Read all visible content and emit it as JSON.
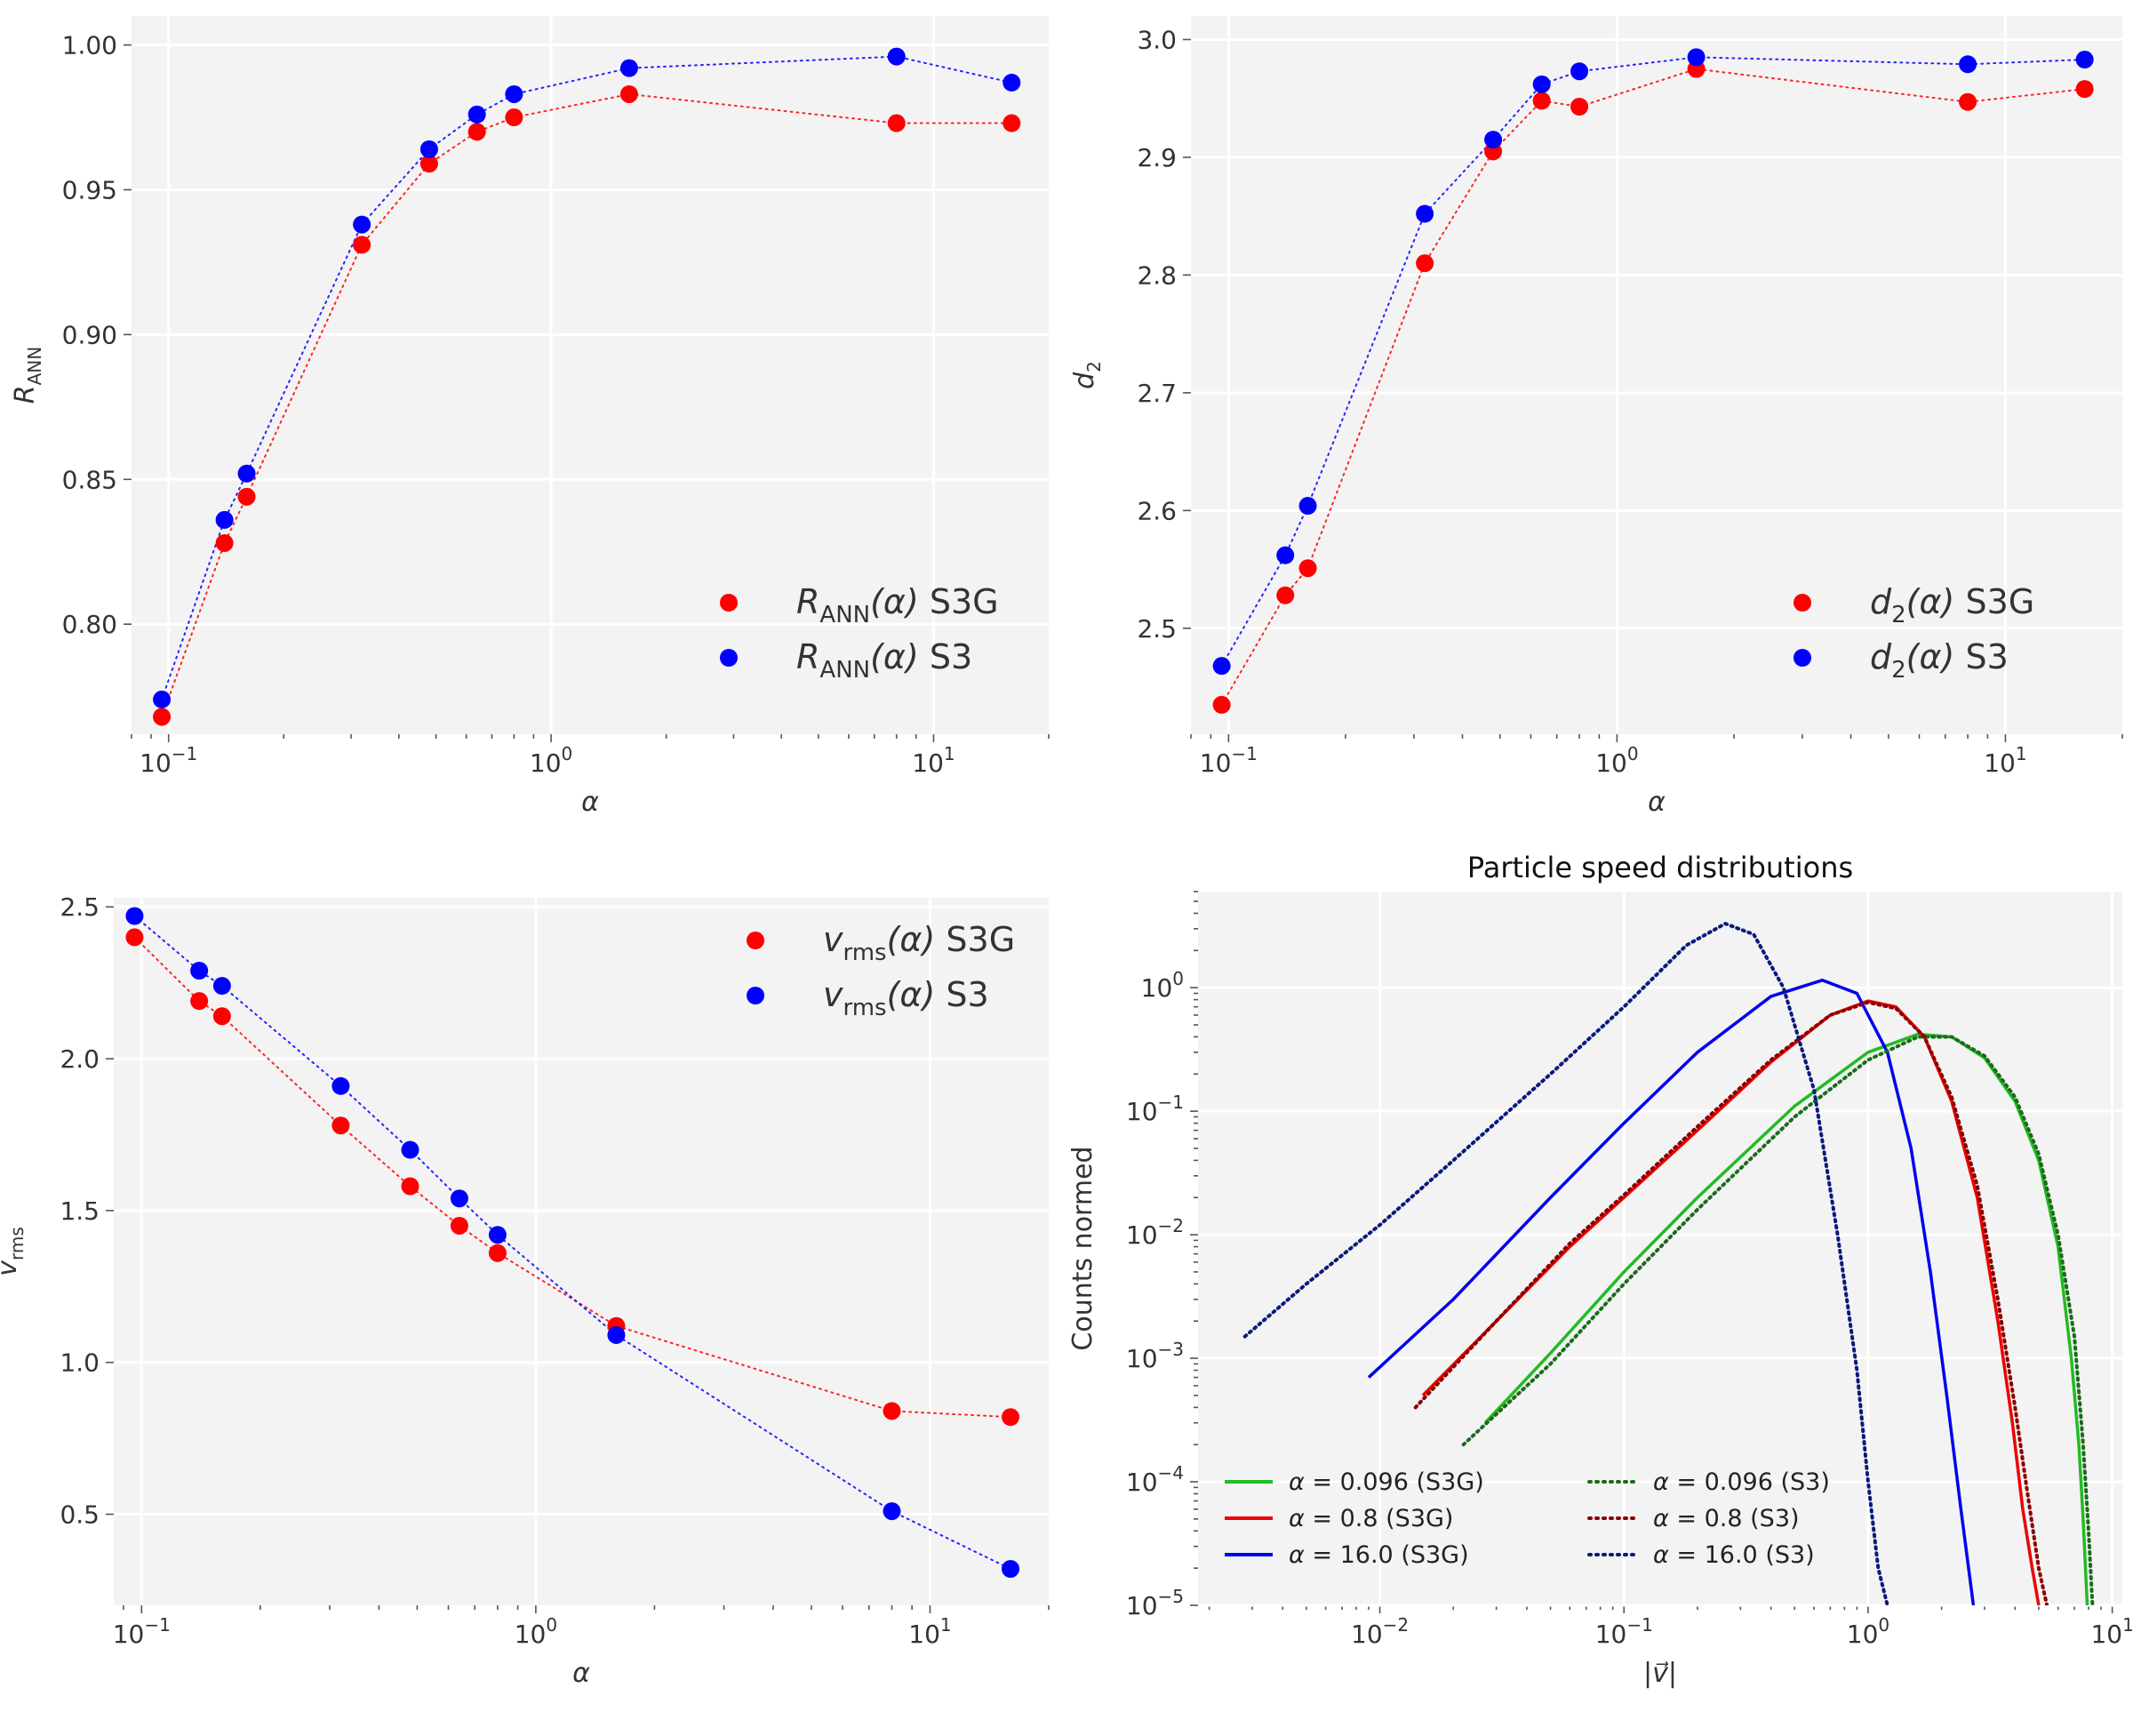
{
  "chart_data": [
    {
      "type": "scatter",
      "id": "rann",
      "xlabel": "α",
      "ylabel": "R_ANN",
      "xscale": "log",
      "xlim": [
        0.08,
        20
      ],
      "ylim": [
        0.762,
        1.01
      ],
      "xticks": [
        {
          "value": 0.1,
          "base": "10",
          "exp": "−1"
        },
        {
          "value": 1,
          "base": "10",
          "exp": "0"
        },
        {
          "value": 10,
          "base": "10",
          "exp": "1"
        }
      ],
      "yticks": [
        {
          "value": 0.8,
          "label": "0.80"
        },
        {
          "value": 0.85,
          "label": "0.85"
        },
        {
          "value": 0.9,
          "label": "0.90"
        },
        {
          "value": 0.95,
          "label": "0.95"
        },
        {
          "value": 1.0,
          "label": "1.00"
        }
      ],
      "x": [
        0.096,
        0.14,
        0.16,
        0.32,
        0.48,
        0.64,
        0.8,
        1.6,
        8.0,
        16.0
      ],
      "series": [
        {
          "name": "R_ANN(α) S3G",
          "color": "#ff0000",
          "values": [
            0.768,
            0.828,
            0.844,
            0.931,
            0.959,
            0.97,
            0.975,
            0.983,
            0.973,
            0.973
          ]
        },
        {
          "name": "R_ANN(α) S3",
          "color": "#0000ff",
          "values": [
            0.774,
            0.836,
            0.852,
            0.938,
            0.964,
            0.976,
            0.983,
            0.992,
            0.996,
            0.987
          ]
        }
      ],
      "legend_position": "lower-right",
      "legend": [
        {
          "sym": "R",
          "sub": "ANN",
          "arg": "(α)",
          "tag": " S3G",
          "color": "#ff0000"
        },
        {
          "sym": "R",
          "sub": "ANN",
          "arg": "(α)",
          "tag": " S3",
          "color": "#0000ff"
        }
      ]
    },
    {
      "type": "scatter",
      "id": "d2",
      "xlabel": "α",
      "ylabel": "d_2",
      "xscale": "log",
      "xlim": [
        0.08,
        20
      ],
      "ylim": [
        2.41,
        3.02
      ],
      "xticks": [
        {
          "value": 0.1,
          "base": "10",
          "exp": "−1"
        },
        {
          "value": 1,
          "base": "10",
          "exp": "0"
        },
        {
          "value": 10,
          "base": "10",
          "exp": "1"
        }
      ],
      "yticks": [
        {
          "value": 2.5,
          "label": "2.5"
        },
        {
          "value": 2.6,
          "label": "2.6"
        },
        {
          "value": 2.7,
          "label": "2.7"
        },
        {
          "value": 2.8,
          "label": "2.8"
        },
        {
          "value": 2.9,
          "label": "2.9"
        },
        {
          "value": 3.0,
          "label": "3.0"
        }
      ],
      "x": [
        0.096,
        0.14,
        0.16,
        0.32,
        0.48,
        0.64,
        0.8,
        1.6,
        8.0,
        16.0
      ],
      "series": [
        {
          "name": "d_2(α) S3G",
          "color": "#ff0000",
          "values": [
            2.435,
            2.528,
            2.551,
            2.81,
            2.905,
            2.948,
            2.943,
            2.975,
            2.947,
            2.958
          ]
        },
        {
          "name": "d_2(α) S3",
          "color": "#0000ff",
          "values": [
            2.468,
            2.562,
            2.604,
            2.852,
            2.915,
            2.962,
            2.973,
            2.985,
            2.979,
            2.983
          ]
        }
      ],
      "legend_position": "lower-right",
      "legend": [
        {
          "sym": "d",
          "sub": "2",
          "arg": "(α)",
          "tag": " S3G",
          "color": "#ff0000"
        },
        {
          "sym": "d",
          "sub": "2",
          "arg": "(α)",
          "tag": " S3",
          "color": "#0000ff"
        }
      ]
    },
    {
      "type": "scatter",
      "id": "vrms",
      "xlabel": "α",
      "ylabel": "v_rms",
      "xscale": "log",
      "xlim": [
        0.085,
        20
      ],
      "ylim": [
        0.2,
        2.53
      ],
      "xticks": [
        {
          "value": 0.1,
          "base": "10",
          "exp": "−1"
        },
        {
          "value": 1,
          "base": "10",
          "exp": "0"
        },
        {
          "value": 10,
          "base": "10",
          "exp": "1"
        }
      ],
      "yticks": [
        {
          "value": 0.5,
          "label": "0.5"
        },
        {
          "value": 1.0,
          "label": "1.0"
        },
        {
          "value": 1.5,
          "label": "1.5"
        },
        {
          "value": 2.0,
          "label": "2.0"
        },
        {
          "value": 2.5,
          "label": "2.5"
        }
      ],
      "x": [
        0.096,
        0.14,
        0.16,
        0.32,
        0.48,
        0.64,
        0.8,
        1.6,
        8.0,
        16.0
      ],
      "series": [
        {
          "name": "v_rms(α) S3G",
          "color": "#ff0000",
          "values": [
            2.4,
            2.19,
            2.14,
            1.78,
            1.58,
            1.45,
            1.36,
            1.12,
            0.84,
            0.82
          ]
        },
        {
          "name": "v_rms(α) S3",
          "color": "#0000ff",
          "values": [
            2.47,
            2.29,
            2.24,
            1.91,
            1.7,
            1.54,
            1.42,
            1.09,
            0.51,
            0.32
          ]
        }
      ],
      "legend_position": "upper-right",
      "legend": [
        {
          "sym": "v",
          "sub": "rms",
          "arg": "(α)",
          "tag": " S3G",
          "color": "#ff0000"
        },
        {
          "sym": "v",
          "sub": "rms",
          "arg": "(α)",
          "tag": " S3",
          "color": "#0000ff"
        }
      ]
    },
    {
      "type": "line",
      "id": "speed",
      "title": "Particle speed distributions",
      "xlabel": "|v⃗|",
      "ylabel": "Counts normed",
      "xscale": "log",
      "yscale": "log",
      "xlim": [
        0.0018,
        11
      ],
      "ylim": [
        1e-05,
        6
      ],
      "xticks": [
        {
          "value": 0.01,
          "base": "10",
          "exp": "−2"
        },
        {
          "value": 0.1,
          "base": "10",
          "exp": "−1"
        },
        {
          "value": 1,
          "base": "10",
          "exp": "0"
        },
        {
          "value": 10,
          "base": "10",
          "exp": "1"
        }
      ],
      "yticks": [
        {
          "value": 1e-05,
          "base": "10",
          "exp": "−5"
        },
        {
          "value": 0.0001,
          "base": "10",
          "exp": "−4"
        },
        {
          "value": 0.001,
          "base": "10",
          "exp": "−3"
        },
        {
          "value": 0.01,
          "base": "10",
          "exp": "−2"
        },
        {
          "value": 0.1,
          "base": "10",
          "exp": "−1"
        },
        {
          "value": 1,
          "base": "10",
          "exp": "0"
        }
      ],
      "series": [
        {
          "name": "α = 0.096 (S3G)",
          "label_value": "0.096",
          "label_tag": " (S3G)",
          "color": "#22bb22",
          "dash": "solid",
          "x": [
            0.027,
            0.05,
            0.1,
            0.2,
            0.5,
            1.0,
            1.6,
            2.2,
            3.0,
            4.0,
            5.0,
            6.0,
            6.8,
            7.3,
            7.6,
            7.9
          ],
          "y": [
            0.0003,
            0.0011,
            0.005,
            0.02,
            0.11,
            0.3,
            0.42,
            0.4,
            0.27,
            0.12,
            0.04,
            0.008,
            0.001,
            0.0002,
            5e-05,
            1e-05
          ]
        },
        {
          "name": "α = 0.8 (S3G)",
          "label_value": "0.8",
          "label_tag": " (S3G)",
          "color": "#ee0000",
          "dash": "solid",
          "x": [
            0.015,
            0.03,
            0.06,
            0.1,
            0.2,
            0.4,
            0.7,
            1.0,
            1.3,
            1.7,
            2.2,
            2.8,
            3.4,
            3.9,
            4.3,
            4.7,
            5.0
          ],
          "y": [
            0.0005,
            0.002,
            0.008,
            0.02,
            0.07,
            0.25,
            0.6,
            0.78,
            0.7,
            0.4,
            0.12,
            0.02,
            0.002,
            0.0003,
            6e-05,
            2e-05,
            1e-05
          ]
        },
        {
          "name": "α = 16.0 (S3G)",
          "label_value": "16.0",
          "label_tag": " (S3G)",
          "color": "#0000ee",
          "dash": "solid",
          "x": [
            0.009,
            0.02,
            0.05,
            0.1,
            0.2,
            0.4,
            0.65,
            0.9,
            1.2,
            1.5,
            1.8,
            2.1,
            2.4,
            2.7
          ],
          "y": [
            0.0007,
            0.003,
            0.02,
            0.08,
            0.3,
            0.85,
            1.15,
            0.9,
            0.3,
            0.05,
            0.005,
            0.0005,
            6e-05,
            1e-05
          ]
        },
        {
          "name": "α = 0.096 (S3)",
          "label_value": "0.096",
          "label_tag": " (S3)",
          "color": "#1b6b1b",
          "dash": "dotted",
          "x": [
            0.022,
            0.05,
            0.1,
            0.2,
            0.5,
            1.0,
            1.6,
            2.2,
            3.0,
            4.0,
            5.0,
            6.0,
            7.0,
            7.6,
            8.0,
            8.3
          ],
          "y": [
            0.0002,
            0.0009,
            0.004,
            0.016,
            0.09,
            0.26,
            0.4,
            0.4,
            0.28,
            0.13,
            0.045,
            0.01,
            0.0015,
            0.0002,
            4e-05,
            1e-05
          ]
        },
        {
          "name": "α = 0.8 (S3)",
          "label_value": "0.8",
          "label_tag": " (S3)",
          "color": "#8b0000",
          "dash": "dotted",
          "x": [
            0.014,
            0.03,
            0.06,
            0.1,
            0.2,
            0.4,
            0.7,
            1.0,
            1.3,
            1.7,
            2.2,
            2.8,
            3.4,
            4.0,
            4.5,
            5.0,
            5.4
          ],
          "y": [
            0.0004,
            0.002,
            0.0085,
            0.021,
            0.075,
            0.26,
            0.6,
            0.76,
            0.68,
            0.4,
            0.13,
            0.025,
            0.003,
            0.0004,
            8e-05,
            2e-05,
            1e-05
          ]
        },
        {
          "name": "α = 16.0 (S3)",
          "label_value": "16.0",
          "label_tag": " (S3)",
          "color": "#0a1a7a",
          "dash": "dotted",
          "x": [
            0.0028,
            0.005,
            0.01,
            0.02,
            0.05,
            0.1,
            0.18,
            0.26,
            0.34,
            0.45,
            0.6,
            0.75,
            0.9,
            1.0,
            1.1,
            1.2
          ],
          "y": [
            0.0015,
            0.004,
            0.012,
            0.04,
            0.2,
            0.7,
            2.2,
            3.3,
            2.7,
            1.0,
            0.15,
            0.01,
            0.0008,
            0.0001,
            2e-05,
            1e-05
          ]
        }
      ],
      "legend_position": "lower-left"
    }
  ]
}
